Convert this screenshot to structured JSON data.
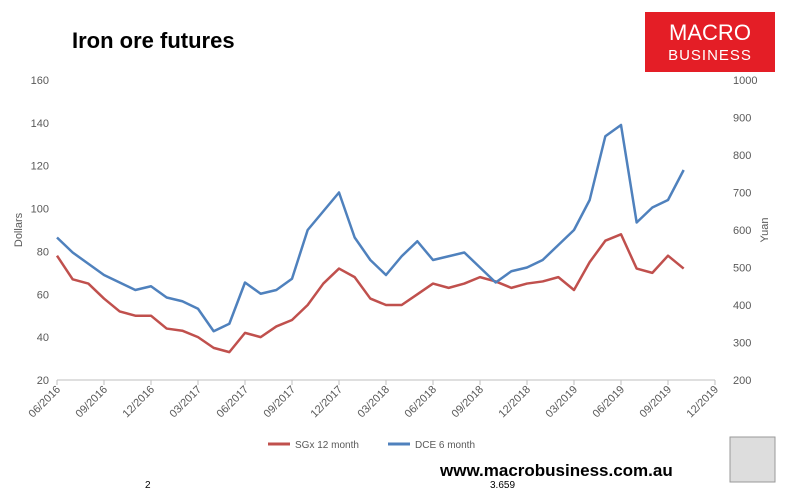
{
  "chart_data": {
    "type": "line",
    "title": "Iron ore futures",
    "y_label": "Dollars",
    "y2_label": "Yuan",
    "x": [
      "06/2016",
      "07/2016",
      "08/2016",
      "09/2016",
      "10/2016",
      "11/2016",
      "12/2016",
      "01/2017",
      "02/2017",
      "03/2017",
      "04/2017",
      "05/2017",
      "06/2017",
      "07/2017",
      "08/2017",
      "09/2017",
      "10/2017",
      "11/2017",
      "12/2017",
      "01/2018",
      "02/2018",
      "03/2018",
      "04/2018",
      "05/2018",
      "06/2018",
      "07/2018",
      "08/2018",
      "09/2018",
      "10/2018",
      "11/2018",
      "12/2018",
      "01/2019",
      "02/2019",
      "03/2019",
      "04/2019",
      "05/2019",
      "06/2019",
      "07/2019",
      "08/2019",
      "09/2019",
      "10/2019"
    ],
    "series": [
      {
        "name": "SGx 12 month",
        "color": "#c0504d",
        "axis": "y",
        "values": [
          78,
          67,
          65,
          58,
          52,
          50,
          50,
          44,
          43,
          40,
          35,
          33,
          42,
          40,
          45,
          48,
          55,
          65,
          72,
          68,
          58,
          55,
          55,
          60,
          65,
          63,
          65,
          68,
          66,
          63,
          65,
          66,
          68,
          62,
          75,
          85,
          88,
          72,
          70,
          78,
          72
        ]
      },
      {
        "name": "DCE 6 month",
        "color": "#4f81bd",
        "axis": "y2",
        "values": [
          580,
          540,
          510,
          480,
          460,
          440,
          450,
          420,
          410,
          390,
          330,
          350,
          460,
          430,
          440,
          470,
          600,
          650,
          700,
          580,
          520,
          480,
          530,
          570,
          520,
          530,
          540,
          500,
          460,
          490,
          500,
          520,
          560,
          600,
          680,
          850,
          880,
          620,
          660,
          680,
          760
        ]
      }
    ],
    "ylim": [
      20,
      160
    ],
    "yticks": [
      20,
      40,
      60,
      80,
      100,
      120,
      140,
      160
    ],
    "y2lim": [
      200,
      1000
    ],
    "y2ticks": [
      200,
      300,
      400,
      500,
      600,
      700,
      800,
      900,
      1000
    ],
    "xticks": [
      "06/2016",
      "09/2016",
      "12/2016",
      "03/2017",
      "06/2017",
      "09/2017",
      "12/2017",
      "03/2018",
      "06/2018",
      "09/2018",
      "12/2018",
      "03/2019",
      "06/2019",
      "09/2019",
      "12/2019"
    ],
    "grid": false,
    "legend": "bottom"
  },
  "logo": {
    "lines": [
      "MACRO",
      "BUSINESS"
    ]
  },
  "footer": "www.macrobusiness.com.au",
  "fragments": [
    "2",
    "3.659"
  ]
}
